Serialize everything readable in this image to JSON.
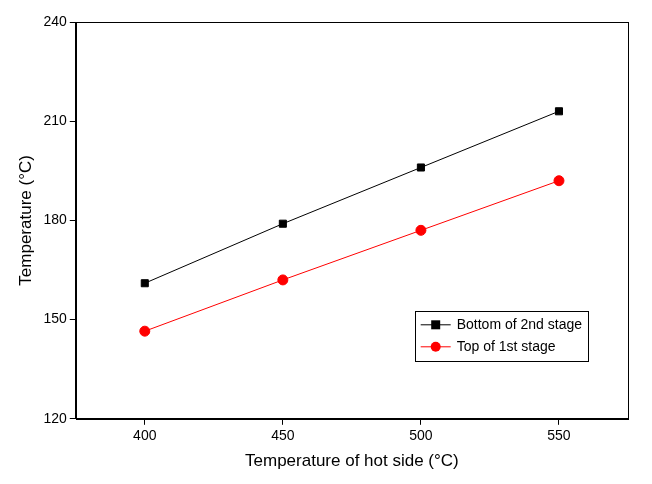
{
  "chart_data": {
    "type": "line",
    "x_label": "Temperature of hot side (°C)",
    "y_label": "Temperature (°C)",
    "x": [
      400,
      450,
      500,
      550
    ],
    "series": [
      {
        "name": "Bottom of 2nd stage",
        "color": "#000000",
        "marker": "square",
        "values": [
          161,
          179,
          196,
          213
        ]
      },
      {
        "name": "Top of 1st stage",
        "color": "#ff0000",
        "marker": "circle",
        "values": [
          146.5,
          162,
          177,
          192
        ]
      }
    ],
    "xlim": [
      375,
      575
    ],
    "xticks": [
      400,
      450,
      500,
      550
    ],
    "ylim": [
      120,
      240
    ],
    "yticks": [
      120,
      150,
      180,
      210,
      240
    ],
    "grid": false,
    "legend": "lower right"
  }
}
